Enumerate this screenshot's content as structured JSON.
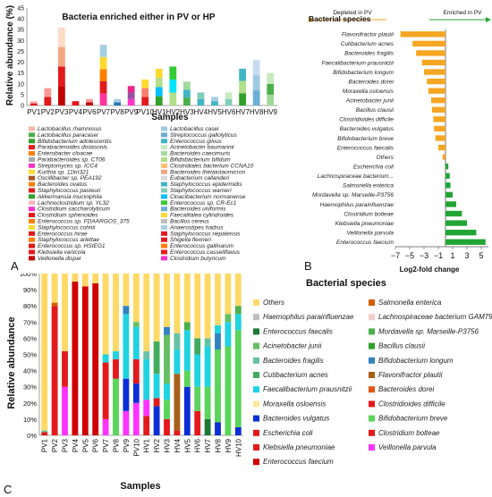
{
  "chart_data": [
    {
      "panel": "A",
      "type": "bar",
      "title": "Bacteria enriched either in PV or HP",
      "xlabel": "Samples",
      "ylabel": "Relative abundance (%)",
      "ylim": [
        0,
        45
      ],
      "yticks": [
        "0",
        "5",
        "10",
        "15",
        "20",
        "25",
        "30",
        "35",
        "40",
        "45"
      ],
      "categories": [
        "PV1",
        "PV2",
        "PV3",
        "PV4",
        "PV6",
        "PV7",
        "PV8",
        "PV9",
        "PV10",
        "HV1",
        "HV2",
        "HV3",
        "HV4",
        "HV5",
        "HV6",
        "HV7",
        "HV8",
        "HV9"
      ],
      "totals": [
        2,
        8,
        36,
        2,
        3,
        28,
        3,
        9,
        12,
        17,
        18,
        11,
        6,
        4,
        6,
        17,
        21,
        15
      ],
      "stack_colors": [
        [
          "#e31a1c",
          "#fbb4ae"
        ],
        [
          "#e31a1c",
          "#fb9a99"
        ],
        [
          "#c00000",
          "#e31a1c",
          "#f4a582",
          "#fddbc7"
        ],
        [
          "#e31a1c"
        ],
        [
          "#c00000",
          "#fb9a99"
        ],
        [
          "#ff3399",
          "#e31a1c",
          "#ff7f00",
          "#ffd92f",
          "#a6cee3"
        ],
        [
          "#1f78b4",
          "#a6cee3"
        ],
        [
          "#ff33cc",
          "#984ea3",
          "#e7298a"
        ],
        [
          "#e31a1c",
          "#fb8072",
          "#ffd92f"
        ],
        [
          "#33a02c",
          "#00bfff",
          "#b2df8a",
          "#ffd92f"
        ],
        [
          "#b2df8a",
          "#00e5ff",
          "#33cc33"
        ],
        [
          "#4daf4a",
          "#41b6c4",
          "#a1d99b"
        ],
        [
          "#41b6c4",
          "#7fcdbb"
        ],
        [
          "#41b6c4",
          "#a6cee3"
        ],
        [
          "#7fcdbb",
          "#c7e9c0"
        ],
        [
          "#33a02c",
          "#b2df8a",
          "#41b6c4"
        ],
        [
          "#6baed6",
          "#9ecae1",
          "#c6dbef"
        ],
        [
          "#a1d99b",
          "#4daf4a",
          "#c7e9c0"
        ]
      ],
      "legend_left": [
        "Lactobacillus rhamnosus",
        "Lactobacillus paracasei",
        "Bifidobacterium adolescentis",
        "Parabacteroides distasonis",
        "Enterobacter cloacae",
        "Parabacteroides sp. CT06",
        "Streptomyces sp. ICC4",
        "Kurthia sp. 11kri321",
        "Oscillibacter sp. PEA192",
        "Bacteroides ovatus",
        "Staphylococcus pasteuri",
        "Akkermansia muciniphila",
        "Lachnoclostridium sp. YL32",
        "Clostridium saccharolyticum",
        "Clostridium sphenoides",
        "Enterococcus sp. FDAARGOS_375",
        "Staphylococcus cohnii",
        "Enterococcus hirae",
        "Staphylococcus arlettae",
        "Enterococcus sp. HSIEG1",
        "Klebsiella variicola",
        "Veillonella dispar"
      ],
      "legend_right": [
        "Lactobacillus casei",
        "Streptococcus gallolyticus",
        "Enterococcus gilvus",
        "Acinetobacter baumannii",
        "Bacteroides caecimuris",
        "Bifidobacterium bifidum",
        "Clostridiales bacterium CCNA10",
        "Bacteroides thetaiotaomicron",
        "Eubacterium callanderi",
        "Staphylococcus epidermidis",
        "Staphylococcus warneri",
        "Cloacibacterium normanense",
        "Enterococcus sp. CR-Ec1",
        "Bacteroides uniformis",
        "Faecalitalea cylindroides",
        "Bacillus cereus",
        "Anaerostipes hadrus",
        "Staphylococcus nepalensis",
        "Shigella flexneri",
        "Enterococcus gallinarum",
        "Enterococcus casseliflavus",
        "Clostridium butyricum"
      ],
      "legend_left_colors": [
        "#fbb4ae",
        "#4daf4a",
        "#33a02c",
        "#e31a1c",
        "#ff7f00",
        "#aaaaaa",
        "#ff33cc",
        "#ffd92f",
        "#a65628",
        "#ff7f00",
        "#e31a1c",
        "#33a02c",
        "#ffb6c1",
        "#ff33cc",
        "#e31a1c",
        "#ff7f00",
        "#ffd92f",
        "#e31a1c",
        "#ff7f00",
        "#e31a1c",
        "#e31a1c",
        "#c00000"
      ],
      "legend_right_colors": [
        "#9ecae1",
        "#6baed6",
        "#41b6c4",
        "#c7e9c0",
        "#a1d99b",
        "#b2df8a",
        "#fdbf6f",
        "#f4a582",
        "#d9d9d9",
        "#41b6c4",
        "#7fcdbb",
        "#00bfff",
        "#33cc33",
        "#6baed6",
        "#ffd92f",
        "#bdbdbd",
        "#a6cee3",
        "#e31a1c",
        "#e31a1c",
        "#ff7f00",
        "#e31a1c",
        "#ff33cc"
      ]
    },
    {
      "panel": "B",
      "type": "bar",
      "title": "Bacterial species",
      "xlabel": "Log2-fold change",
      "xlim": [
        -7,
        6
      ],
      "xticks": [
        -7,
        -5,
        -3,
        -1,
        1,
        3,
        5
      ],
      "annotations": [
        "Depleted in PV",
        "Enriched in PV"
      ],
      "categories": [
        "Flavonifractor plautii",
        "Cutibacterium acnes",
        "Bacteroides fragilis",
        "Faecalibacterium prausnitzii",
        "Bifidobacterium longum",
        "Bacteroides dorei",
        "Moraxella osloensis",
        "Acinetobacter junii",
        "Bacillus clausii",
        "Clostridioides difficile",
        "Bacteroides vulgatus",
        "Bifidobacterium breve",
        "Enterococcus faecalis",
        "Others",
        "Escherichia coli",
        "Lachnospiraceae bacterium...",
        "Salmonella enterica",
        "Mordavella sp. Marseille-P3756",
        "Haemophilus parainfluenzae",
        "Clostridium bolteae",
        "Klebsiella pneumoniae",
        "Veillonella parvula",
        "Enterococcus faecium"
      ],
      "values": [
        -6.3,
        -4.6,
        -4.1,
        -3.3,
        -3.0,
        -2.6,
        -2.4,
        -2.0,
        -1.9,
        -1.7,
        -1.6,
        -1.4,
        -1.0,
        -0.4,
        0.4,
        0.6,
        0.7,
        1.0,
        1.5,
        2.3,
        3.0,
        4.3,
        5.6
      ],
      "colors": {
        "negative": "#f5a623",
        "positive": "#22a535"
      }
    },
    {
      "panel": "C",
      "type": "bar",
      "xlabel": "Samples",
      "ylabel": "Relative abundance",
      "ylim": [
        0,
        100
      ],
      "yticks": [
        "0%",
        "10%",
        "20%",
        "30%",
        "40%",
        "50%",
        "60%",
        "70%",
        "80%",
        "90%",
        "100%"
      ],
      "categories": [
        "PV1",
        "PV2",
        "PV3",
        "PV4",
        "PV5",
        "PV6",
        "PV7",
        "PV8",
        "PV9",
        "PV10",
        "HV1",
        "HV2",
        "HV3",
        "HV4",
        "HV5",
        "HV6",
        "HV7",
        "HV8",
        "HV9",
        "HV10"
      ],
      "legend_title": "Bacterial species",
      "legend": [
        {
          "name": "Others",
          "color": "#ffd966"
        },
        {
          "name": "Salmonella enterica",
          "color": "#d55e00"
        },
        {
          "name": "Haemophilus parainfluenzae",
          "color": "#bdbdbd"
        },
        {
          "name": "Lachnospiraceae bacterium GAM79",
          "color": "#f4cccc"
        },
        {
          "name": "Enterococcus faecalis",
          "color": "#1b7837"
        },
        {
          "name": "Mordavella sp. Marseille-P3756",
          "color": "#4daf4a"
        },
        {
          "name": "Acinetobacter junii",
          "color": "#66bd63"
        },
        {
          "name": "Bacillus clausii",
          "color": "#33a02c"
        },
        {
          "name": "Bacteroides fragilis",
          "color": "#66c2a5"
        },
        {
          "name": "Bifidobacterium longum",
          "color": "#3182bd"
        },
        {
          "name": "Cutibacterium acnes",
          "color": "#41ab5d"
        },
        {
          "name": "Flavonifractor plautii",
          "color": "#a6611a"
        },
        {
          "name": "Faecalibacterium prausnitzii",
          "color": "#1fd3e0"
        },
        {
          "name": "Bacteroides dorei",
          "color": "#e6550d"
        },
        {
          "name": "Moraxella osloensis",
          "color": "#ffe699"
        },
        {
          "name": "Clostridioides difficile",
          "color": "#e31a1c"
        },
        {
          "name": "Bacteroides vulgatus",
          "color": "#0c2ed6"
        },
        {
          "name": "Bifidobacterium breve",
          "color": "#5ad45a"
        },
        {
          "name": "Escherichia coli",
          "color": "#e31a1c"
        },
        {
          "name": "Clostridium bolteae",
          "color": "#e31a1c"
        },
        {
          "name": "Klebsiella pneumoniae",
          "color": "#e31a1c"
        },
        {
          "name": "Veillonella parvula",
          "color": "#ff33ff"
        },
        {
          "name": "Enterococcus faecium",
          "color": "#d00000"
        }
      ],
      "stacks": [
        [
          {
            "c": "#e31a1c",
            "v": 2
          },
          {
            "c": "#66c2a5",
            "v": 1
          },
          {
            "c": "#ffd966",
            "v": 97
          }
        ],
        [
          {
            "c": "#e31a1c",
            "v": 80
          },
          {
            "c": "#d55e00",
            "v": 2
          },
          {
            "c": "#ffd966",
            "v": 18
          }
        ],
        [
          {
            "c": "#ff33ff",
            "v": 30
          },
          {
            "c": "#e31a1c",
            "v": 22
          },
          {
            "c": "#ffd966",
            "v": 48
          }
        ],
        [
          {
            "c": "#d00000",
            "v": 95
          },
          {
            "c": "#ffd966",
            "v": 5
          }
        ],
        [
          {
            "c": "#d00000",
            "v": 92
          },
          {
            "c": "#ffd966",
            "v": 8
          }
        ],
        [
          {
            "c": "#d00000",
            "v": 94
          },
          {
            "c": "#ffd966",
            "v": 6
          }
        ],
        [
          {
            "c": "#ff33ff",
            "v": 10
          },
          {
            "c": "#e31a1c",
            "v": 35
          },
          {
            "c": "#1fd3e0",
            "v": 5
          },
          {
            "c": "#ffd966",
            "v": 50
          }
        ],
        [
          {
            "c": "#5ad45a",
            "v": 35
          },
          {
            "c": "#e31a1c",
            "v": 12
          },
          {
            "c": "#1fd3e0",
            "v": 5
          },
          {
            "c": "#ffd966",
            "v": 48
          }
        ],
        [
          {
            "c": "#ff33ff",
            "v": 15
          },
          {
            "c": "#0c2ed6",
            "v": 20
          },
          {
            "c": "#1fd3e0",
            "v": 40
          },
          {
            "c": "#3182bd",
            "v": 5
          },
          {
            "c": "#ffd966",
            "v": 20
          }
        ],
        [
          {
            "c": "#ff33ff",
            "v": 20
          },
          {
            "c": "#0c2ed6",
            "v": 12
          },
          {
            "c": "#e31a1c",
            "v": 15
          },
          {
            "c": "#1fd3e0",
            "v": 20
          },
          {
            "c": "#66bd63",
            "v": 3
          },
          {
            "c": "#ffd966",
            "v": 30
          }
        ],
        [
          {
            "c": "#e31a1c",
            "v": 12
          },
          {
            "c": "#ff33ff",
            "v": 10
          },
          {
            "c": "#1fd3e0",
            "v": 25
          },
          {
            "c": "#66c2a5",
            "v": 5
          },
          {
            "c": "#ffd966",
            "v": 48
          }
        ],
        [
          {
            "c": "#0c2ed6",
            "v": 18
          },
          {
            "c": "#e31a1c",
            "v": 5
          },
          {
            "c": "#1fd3e0",
            "v": 15
          },
          {
            "c": "#41ab5d",
            "v": 20
          },
          {
            "c": "#ffd966",
            "v": 42
          }
        ],
        [
          {
            "c": "#e31a1c",
            "v": 10
          },
          {
            "c": "#5ad45a",
            "v": 12
          },
          {
            "c": "#1fd3e0",
            "v": 10
          },
          {
            "c": "#66bd63",
            "v": 30
          },
          {
            "c": "#3182bd",
            "v": 5
          },
          {
            "c": "#ffd966",
            "v": 33
          }
        ],
        [
          {
            "c": "#e31a1c",
            "v": 3
          },
          {
            "c": "#a6611a",
            "v": 35
          },
          {
            "c": "#1fd3e0",
            "v": 15
          },
          {
            "c": "#66c2a5",
            "v": 10
          },
          {
            "c": "#ffd966",
            "v": 37
          }
        ],
        [
          {
            "c": "#0c2ed6",
            "v": 30
          },
          {
            "c": "#5ad45a",
            "v": 10
          },
          {
            "c": "#1fd3e0",
            "v": 25
          },
          {
            "c": "#4daf4a",
            "v": 5
          },
          {
            "c": "#ffd966",
            "v": 30
          }
        ],
        [
          {
            "c": "#e31a1c",
            "v": 15
          },
          {
            "c": "#5ad45a",
            "v": 15
          },
          {
            "c": "#1fd3e0",
            "v": 20
          },
          {
            "c": "#41ab5d",
            "v": 10
          },
          {
            "c": "#ffd966",
            "v": 40
          }
        ],
        [
          {
            "c": "#1b7837",
            "v": 10
          },
          {
            "c": "#5ad45a",
            "v": 20
          },
          {
            "c": "#1fd3e0",
            "v": 25
          },
          {
            "c": "#66c2a5",
            "v": 5
          },
          {
            "c": "#ffd966",
            "v": 40
          }
        ],
        [
          {
            "c": "#0c2ed6",
            "v": 8
          },
          {
            "c": "#5ad45a",
            "v": 45
          },
          {
            "c": "#3182bd",
            "v": 10
          },
          {
            "c": "#1fd3e0",
            "v": 5
          },
          {
            "c": "#ffd966",
            "v": 32
          }
        ],
        [
          {
            "c": "#5ad45a",
            "v": 55
          },
          {
            "c": "#1fd3e0",
            "v": 15
          },
          {
            "c": "#66bd63",
            "v": 5
          },
          {
            "c": "#ffd966",
            "v": 25
          }
        ],
        [
          {
            "c": "#0c2ed6",
            "v": 5
          },
          {
            "c": "#5ad45a",
            "v": 60
          },
          {
            "c": "#1fd3e0",
            "v": 10
          },
          {
            "c": "#4daf4a",
            "v": 5
          },
          {
            "c": "#ffd966",
            "v": 20
          }
        ]
      ]
    }
  ],
  "panel_labels": [
    "A",
    "B",
    "C"
  ]
}
